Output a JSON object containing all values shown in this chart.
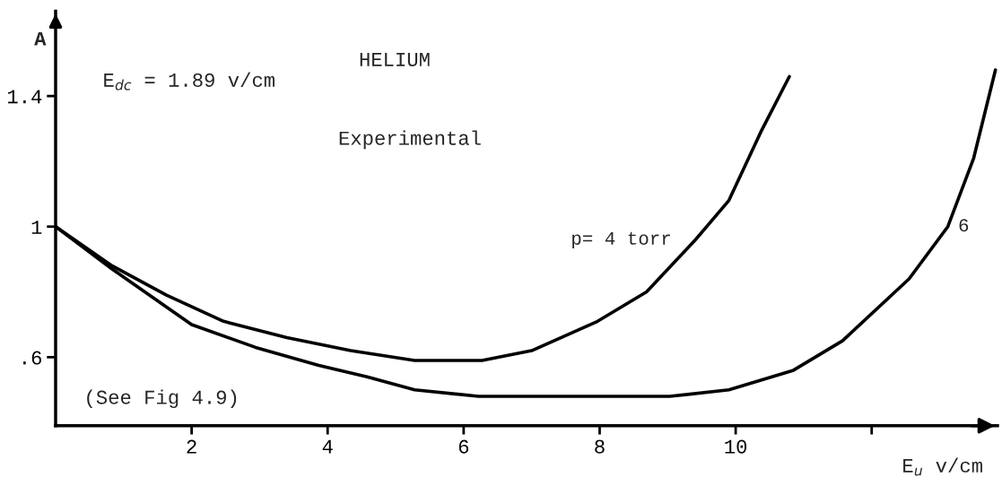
{
  "chart_data": {
    "type": "line",
    "title": "HELIUM",
    "xlabel": "E$_{u}$ v/cm",
    "ylabel": "A",
    "annotations": [
      "E$_{dc}$ = 1.89 v/cm",
      "Experimental",
      "(See Fig 4.9)"
    ],
    "series": [
      {
        "name": "p= 4 torr",
        "color": "#000000",
        "x": [
          0,
          0.83,
          1.63,
          2.47,
          3.4,
          4.34,
          5.28,
          5.98,
          6.27,
          7.0,
          7.97,
          8.69,
          9.41,
          9.9,
          10.37,
          10.79
        ],
        "values": [
          1.0,
          0.88,
          0.79,
          0.71,
          0.66,
          0.62,
          0.59,
          0.59,
          0.59,
          0.62,
          0.71,
          0.8,
          0.96,
          1.08,
          1.29,
          1.46
        ]
      },
      {
        "name": "6",
        "color": "#000000",
        "x": [
          0,
          0.83,
          2.0,
          2.94,
          3.87,
          4.58,
          5.28,
          6.22,
          7.0,
          8.2,
          9.03,
          9.9,
          10.85,
          11.57,
          12.55,
          13.12,
          13.5,
          13.82
        ],
        "values": [
          1.0,
          0.87,
          0.7,
          0.63,
          0.575,
          0.54,
          0.5,
          0.48,
          0.48,
          0.48,
          0.48,
          0.5,
          0.56,
          0.65,
          0.84,
          1.0,
          1.21,
          1.48
        ]
      }
    ],
    "xlim": [
      0,
      13.85
    ],
    "ylim": [
      0.39,
      1.66
    ],
    "xticks": [
      2,
      4,
      6,
      8,
      10,
      {
        "value": 12,
        "label": null
      }
    ],
    "yticks": [
      {
        "value": 0.6,
        "label": ".6"
      },
      1,
      {
        "value": 1.4,
        "label": "1.4"
      }
    ],
    "grid": false,
    "legend": false,
    "line_style": "solid",
    "marker": "none"
  }
}
